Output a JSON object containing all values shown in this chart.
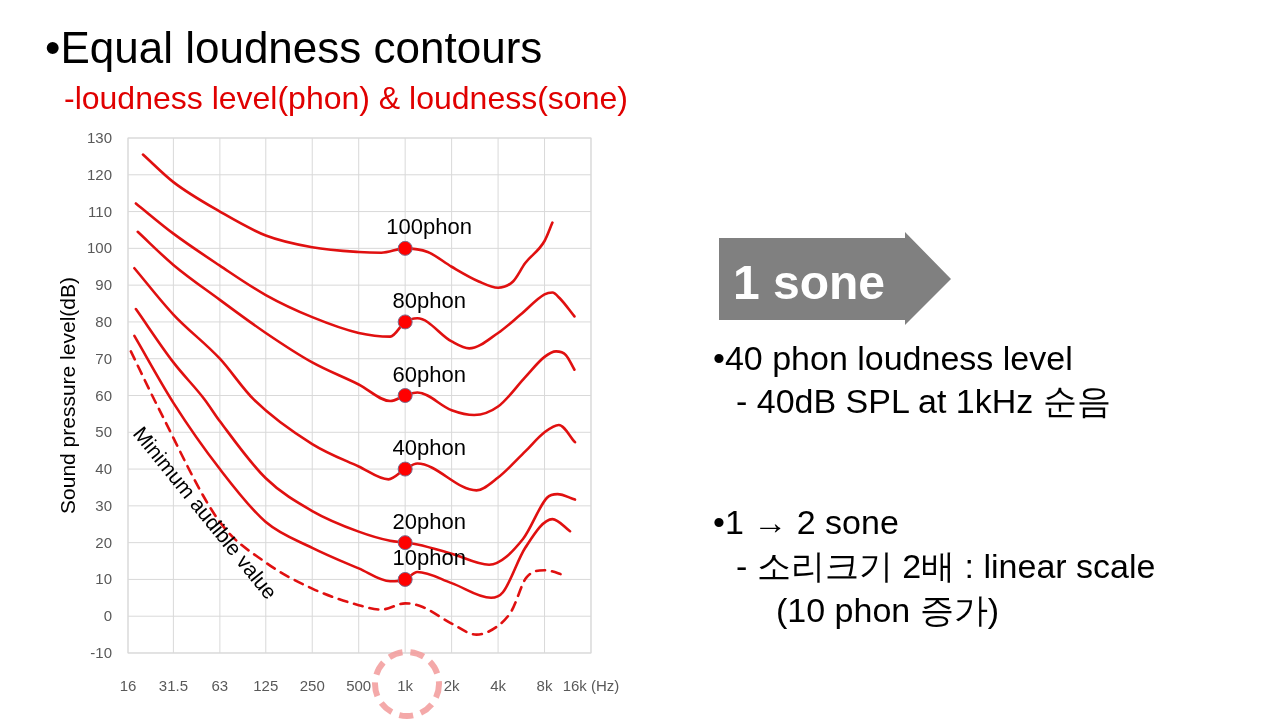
{
  "chart_data": {
    "type": "line",
    "title": "•Equal loudness contours",
    "subtitle": "-loudness level(phon) & loudness(sone)",
    "ylabel": "Sound pressure level(dB)",
    "log": "x",
    "xlim": [
      16,
      16000
    ],
    "xticks": [
      16,
      31.5,
      63,
      125,
      250,
      500,
      {
        "value": 1000,
        "label": "1k"
      },
      {
        "value": 2000,
        "label": "2k"
      },
      {
        "value": 4000,
        "label": "4k"
      },
      {
        "value": 8000,
        "label": "8k"
      },
      {
        "value": 16000,
        "label": "16k (Hz)"
      }
    ],
    "ylim": [
      -10,
      130
    ],
    "yticks": [
      -10,
      0,
      10,
      20,
      30,
      40,
      50,
      60,
      70,
      80,
      90,
      100,
      110,
      120,
      130
    ],
    "grid": true,
    "series": [
      {
        "color": "#e01010",
        "x": [
          20,
          31.5,
          63,
          125,
          250,
          500,
          700,
          1000,
          1400,
          2000,
          3000,
          4000,
          5000,
          6000,
          8000,
          9000
        ],
        "values": [
          125.5,
          118,
          110,
          103.5,
          100.3,
          99,
          98.8,
          100,
          99,
          95,
          91,
          89.3,
          91,
          96,
          102,
          107
        ]
      },
      {
        "color": "#e01010",
        "x": [
          18,
          31.5,
          63,
          125,
          250,
          500,
          800,
          1000,
          1200,
          2000,
          2600,
          4000,
          5600,
          8000,
          9000,
          10000,
          12500
        ],
        "values": [
          112.2,
          104,
          95.3,
          87.3,
          81.3,
          77,
          76,
          80,
          81,
          74.7,
          72.8,
          77,
          82,
          87.5,
          88,
          86.5,
          81.5
        ]
      },
      {
        "color": "#e01010",
        "x": [
          18.5,
          31.5,
          63,
          125,
          250,
          500,
          800,
          1000,
          1200,
          2000,
          2800,
          4000,
          6000,
          8000,
          9500,
          11000,
          12500
        ],
        "values": [
          104.5,
          95.5,
          86,
          77,
          69,
          63,
          58.5,
          60,
          60.8,
          56,
          54.7,
          57,
          65,
          70.5,
          72,
          71,
          67
        ]
      },
      {
        "color": "#e01010",
        "x": [
          17.6,
          31.5,
          63,
          104,
          250,
          500,
          780,
          1000,
          1200,
          2900,
          4000,
          6000,
          8000,
          9900,
          12600
        ],
        "values": [
          94.6,
          82,
          70,
          59,
          46.8,
          40.7,
          37.2,
          40,
          41.5,
          34.2,
          37.7,
          44.8,
          50,
          52,
          47.3
        ]
      },
      {
        "color": "#e01010",
        "x": [
          18,
          31.5,
          50,
          63,
          125,
          250,
          500,
          800,
          1000,
          1200,
          2000,
          3500,
          5800,
          8300,
          9700,
          12600
        ],
        "values": [
          83.5,
          69,
          59,
          53,
          37.5,
          28.6,
          23,
          20.5,
          20,
          19.5,
          17,
          14,
          21,
          32.2,
          33.2,
          31.7
        ]
      },
      {
        "color": "#e01010",
        "x": [
          17.6,
          31.5,
          63,
          125,
          250,
          500,
          800,
          1000,
          1200,
          2000,
          3600,
          4300,
          6000,
          9000,
          11700
        ],
        "values": [
          76.2,
          58,
          40,
          25.6,
          18.6,
          13,
          9.5,
          10,
          12,
          9,
          5,
          6.5,
          18.6,
          26.4,
          23.1
        ]
      },
      {
        "color": "#e01010",
        "line_style": "dashed",
        "x": [
          16.7,
          25,
          63,
          125,
          250,
          500,
          700,
          1000,
          1300,
          2000,
          2900,
          4000,
          4900,
          6100,
          8000,
          11000
        ],
        "values": [
          72,
          56.9,
          25.6,
          14.6,
          7.5,
          3,
          1.8,
          3.5,
          2.5,
          -2,
          -5,
          -2.6,
          1.5,
          10.5,
          12.5,
          11
        ]
      },
      {
        "type": "scatter",
        "marker": "circle",
        "color": "#ff0000",
        "x": [
          1000,
          1000,
          1000,
          1000,
          1000,
          1000
        ],
        "values": [
          100,
          80,
          60,
          40,
          20,
          10
        ]
      }
    ],
    "annotations": [
      "100phon",
      "80phon",
      "60phon",
      "40phon",
      "20phon",
      "10phon",
      "Minimum audible value",
      "1 sone",
      "•40 phon loudness level",
      "- 40dB SPL at 1kHz 순음",
      "•1 → 2 sone",
      "- 소리크기 2배 : linear scale",
      "(10 phon 증가)"
    ]
  }
}
